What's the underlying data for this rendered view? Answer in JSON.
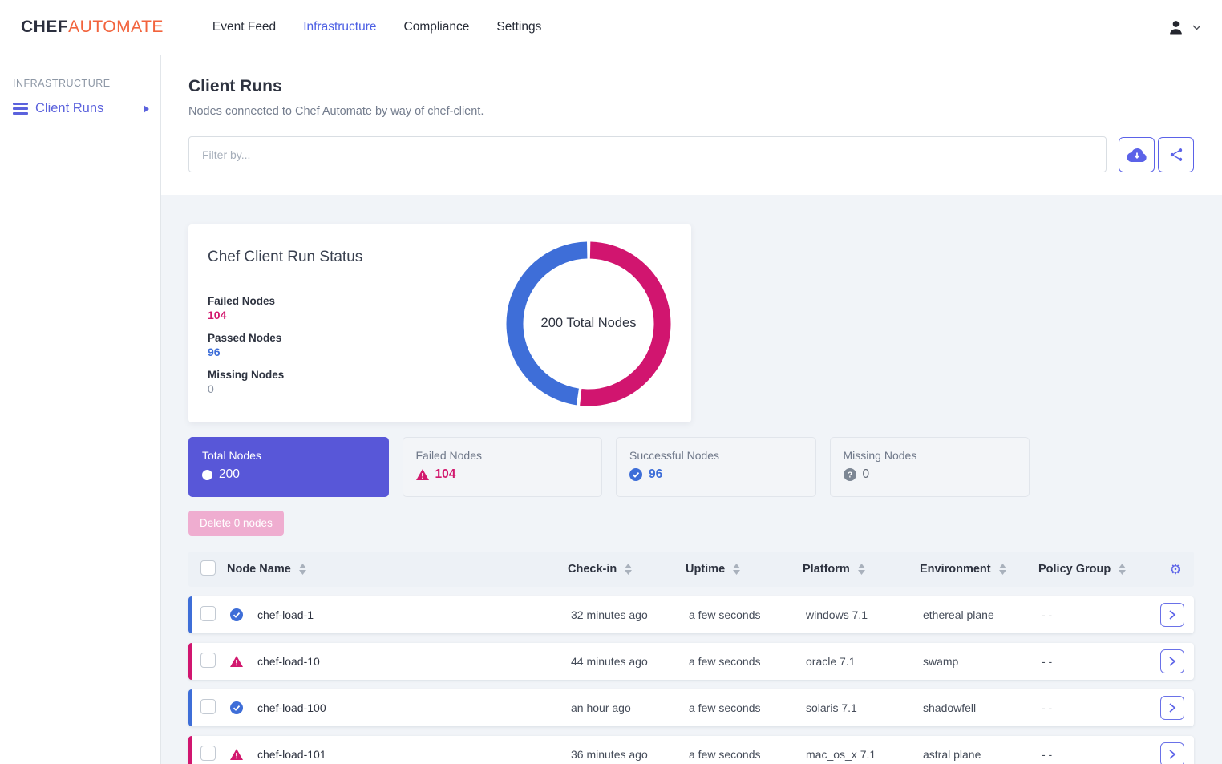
{
  "colors": {
    "accent_indigo": "#5b62e8",
    "active_nav": "#4c5fe4",
    "brand_orange": "#f2633c",
    "selected_card_bg": "#5857d8",
    "failed_magenta": "#d2196e",
    "passed_blue": "#3e6ed8",
    "content_bg": "#f1f4f8"
  },
  "topnav": {
    "brand": {
      "part1": "CHEF",
      "part2": "AUTOMATE"
    },
    "items": [
      {
        "label": "Event Feed",
        "active": false
      },
      {
        "label": "Infrastructure",
        "active": true
      },
      {
        "label": "Compliance",
        "active": false
      },
      {
        "label": "Settings",
        "active": false
      }
    ]
  },
  "sidebar": {
    "section_label": "INFRASTRUCTURE",
    "items": [
      {
        "label": "Client Runs",
        "active": true
      }
    ]
  },
  "page": {
    "title": "Client Runs",
    "subtitle": "Nodes connected to Chef Automate by way of chef-client."
  },
  "filter": {
    "placeholder": "Filter by..."
  },
  "chart_card": {
    "title": "Chef Client Run Status",
    "center_label": "200 Total Nodes",
    "legend": [
      {
        "label": "Failed Nodes",
        "value": "104",
        "color": "#d2196e"
      },
      {
        "label": "Passed Nodes",
        "value": "96",
        "color": "#3e6ed8"
      },
      {
        "label": "Missing Nodes",
        "value": "0",
        "color": "#8b94a3"
      }
    ]
  },
  "chart_data": {
    "type": "pie",
    "donut": true,
    "title": "Chef Client Run Status",
    "categories": [
      "Failed Nodes",
      "Passed Nodes",
      "Missing Nodes"
    ],
    "values": [
      104,
      96,
      0
    ],
    "colors": [
      "#d1156f",
      "#3e6ed8",
      "#8b94a3"
    ],
    "center_label": "200 Total Nodes",
    "total": 200
  },
  "summary_cards": [
    {
      "label": "Total Nodes",
      "value": "200",
      "icon": "circle-icon",
      "selected": true
    },
    {
      "label": "Failed Nodes",
      "value": "104",
      "icon": "warning-icon",
      "selected": false
    },
    {
      "label": "Successful Nodes",
      "value": "96",
      "icon": "check-circle-icon",
      "selected": false
    },
    {
      "label": "Missing Nodes",
      "value": "0",
      "icon": "question-circle-icon",
      "selected": false
    }
  ],
  "actions": {
    "delete_label": "Delete 0 nodes",
    "delete_disabled": true
  },
  "table": {
    "columns": [
      "Node Name",
      "Check-in",
      "Uptime",
      "Platform",
      "Environment",
      "Policy Group"
    ],
    "rows": [
      {
        "status": "success",
        "name": "chef-load-1",
        "check_in": "32 minutes ago",
        "uptime": "a few seconds",
        "platform": "windows 7.1",
        "environment": "ethereal plane",
        "policy_group": "- -"
      },
      {
        "status": "failure",
        "name": "chef-load-10",
        "check_in": "44 minutes ago",
        "uptime": "a few seconds",
        "platform": "oracle 7.1",
        "environment": "swamp",
        "policy_group": "- -"
      },
      {
        "status": "success",
        "name": "chef-load-100",
        "check_in": "an hour ago",
        "uptime": "a few seconds",
        "platform": "solaris 7.1",
        "environment": "shadowfell",
        "policy_group": "- -"
      },
      {
        "status": "failure",
        "name": "chef-load-101",
        "check_in": "36 minutes ago",
        "uptime": "a few seconds",
        "platform": "mac_os_x 7.1",
        "environment": "astral plane",
        "policy_group": "- -"
      }
    ]
  }
}
